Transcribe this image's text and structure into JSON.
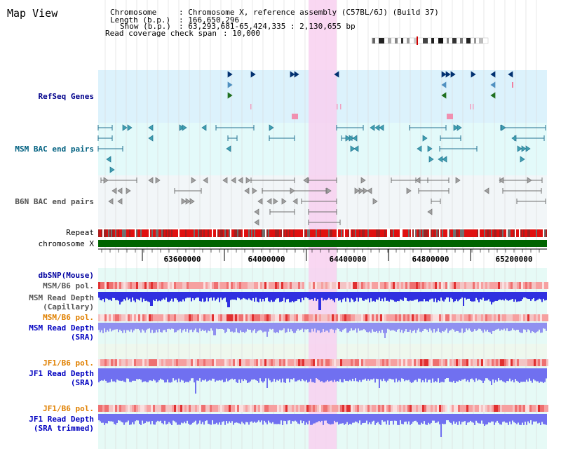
{
  "page_title": "Map View",
  "info": {
    "chromosome_label": "Chromosome",
    "chromosome_value": ": Chromosome X, reference assembly (C57BL/6J) (Build 37)",
    "length_label": "Length (b.p.)",
    "length_value": ": 166,650,296",
    "show_label": "Show (b.p.)",
    "show_value": ": 63,293,681-65,424,335 : 2,130,655 bp",
    "coverage_label": "Read coverage check span",
    "coverage_value": ": 10,000"
  },
  "tracks": {
    "refseq": "RefSeq Genes",
    "msm_bac": "MSM BAC end pairs",
    "b6n_bac": "B6N BAC end pairs",
    "repeat": "Repeat",
    "chromosome": "chromosome X",
    "dbsnp": "dbSNP(Mouse)",
    "msm_pol": "MSM/B6 pol.",
    "msm_cap_1": "MSM Read Depth",
    "msm_cap_2": "(Capillary)",
    "msm_pol2": "MSM/B6 pol.",
    "msm_sra_1": "MSM Read Depth",
    "msm_sra_2": "(SRA)",
    "jf1_pol": "JF1/B6 pol.",
    "jf1_sra_1": "JF1 Read Depth",
    "jf1_sra_2": "(SRA)",
    "jf1_pol2": "JF1/B6 pol.",
    "jf1_trim_1": "JF1 Read Depth",
    "jf1_trim_2": "(SRA trimmed)"
  },
  "axis_ticks": [
    "63600000",
    "64000000",
    "64400000",
    "64800000",
    "65200000"
  ],
  "colors": {
    "refseq_label": "#00008b",
    "msm_bac_label": "#006080",
    "b6n_label": "#505050",
    "dbsnp_label": "#0000a0",
    "pol_label": "#e08000",
    "depth_label": "#0000c0",
    "highlight": "#f8d0f0",
    "chromosome_bar": "#006400"
  },
  "icons": [
    "chromosome-ideogram-icon"
  ]
}
